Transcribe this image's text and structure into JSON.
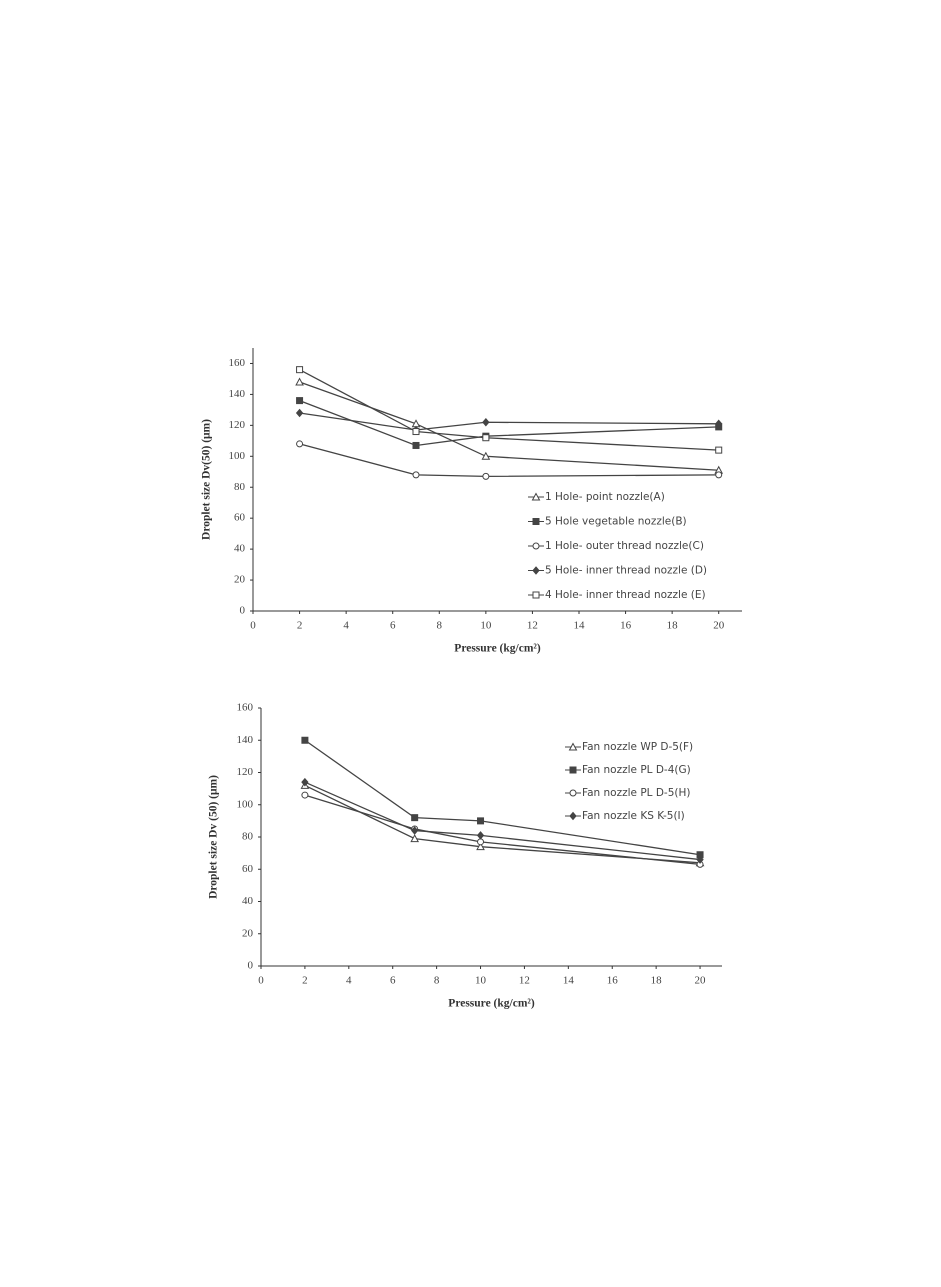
{
  "chart_data": [
    {
      "type": "line",
      "xlabel": "Pressure (kg/cm²)",
      "ylabel": "Droplet size  Dv(50) (μm)",
      "x": [
        2,
        7,
        10,
        20
      ],
      "xlim": [
        0,
        21
      ],
      "xticks": [
        0,
        2,
        4,
        6,
        8,
        10,
        12,
        14,
        16,
        18,
        20
      ],
      "ylim": [
        0,
        170
      ],
      "yticks": [
        0,
        20,
        40,
        60,
        80,
        100,
        120,
        140,
        160
      ],
      "series": [
        {
          "name": "1 Hole- point nozzle(A)",
          "color": "#444",
          "marker": "triangle-open",
          "values": [
            148,
            121,
            100,
            91
          ]
        },
        {
          "name": "5 Hole vegetable nozzle(B)",
          "color": "#444",
          "marker": "square-filled",
          "values": [
            136,
            107,
            113,
            119
          ]
        },
        {
          "name": "1 Hole- outer thread nozzle(C)",
          "color": "#444",
          "marker": "circle-open",
          "values": [
            108,
            88,
            87,
            88
          ]
        },
        {
          "name": "5 Hole- inner thread nozzle (D)",
          "color": "#444",
          "marker": "diamond-filled",
          "values": [
            128,
            117,
            122,
            121
          ]
        },
        {
          "name": "4 Hole- inner thread nozzle (E)",
          "color": "#444",
          "marker": "square-open",
          "values": [
            156,
            116,
            112,
            104
          ]
        }
      ]
    },
    {
      "type": "line",
      "xlabel": "Pressure (kg/cm²)",
      "ylabel": "Droplet size  Dv (50) (μm)",
      "x": [
        2,
        7,
        10,
        20
      ],
      "xlim": [
        0,
        21
      ],
      "xticks": [
        0,
        2,
        4,
        6,
        8,
        10,
        12,
        14,
        16,
        18,
        20
      ],
      "ylim": [
        0,
        160
      ],
      "yticks": [
        0,
        20,
        40,
        60,
        80,
        100,
        120,
        140,
        160
      ],
      "series": [
        {
          "name": "Fan nozzle WP D-5(F)",
          "color": "#444",
          "marker": "triangle-open",
          "values": [
            112,
            79,
            74,
            64
          ]
        },
        {
          "name": "Fan nozzle PL D-4(G)",
          "color": "#444",
          "marker": "square-filled",
          "values": [
            140,
            92,
            90,
            69
          ]
        },
        {
          "name": "Fan nozzle PL D-5(H)",
          "color": "#444",
          "marker": "circle-open",
          "values": [
            106,
            85,
            77,
            63
          ]
        },
        {
          "name": "Fan nozzle KS K-5(I)",
          "color": "#444",
          "marker": "diamond-filled",
          "values": [
            114,
            84,
            81,
            66
          ]
        }
      ]
    }
  ]
}
